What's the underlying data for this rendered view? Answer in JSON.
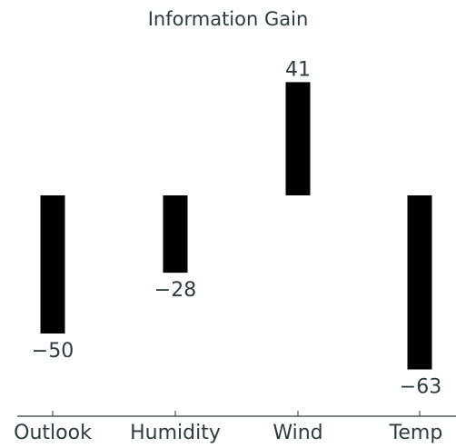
{
  "chart_data": {
    "type": "bar",
    "title": "Information Gain",
    "categories": [
      "Outlook",
      "Humidity",
      "Wind",
      "Temp"
    ],
    "values": [
      -50,
      -28,
      41,
      -63
    ],
    "data_labels": [
      "−50",
      "−28",
      "41",
      "−63"
    ],
    "xlabel": "",
    "ylabel": "",
    "grid": false,
    "legend": "none",
    "colors": {
      "bar": "#000000",
      "axis": "#2e3b3b",
      "text": "#2e3b3b"
    }
  }
}
